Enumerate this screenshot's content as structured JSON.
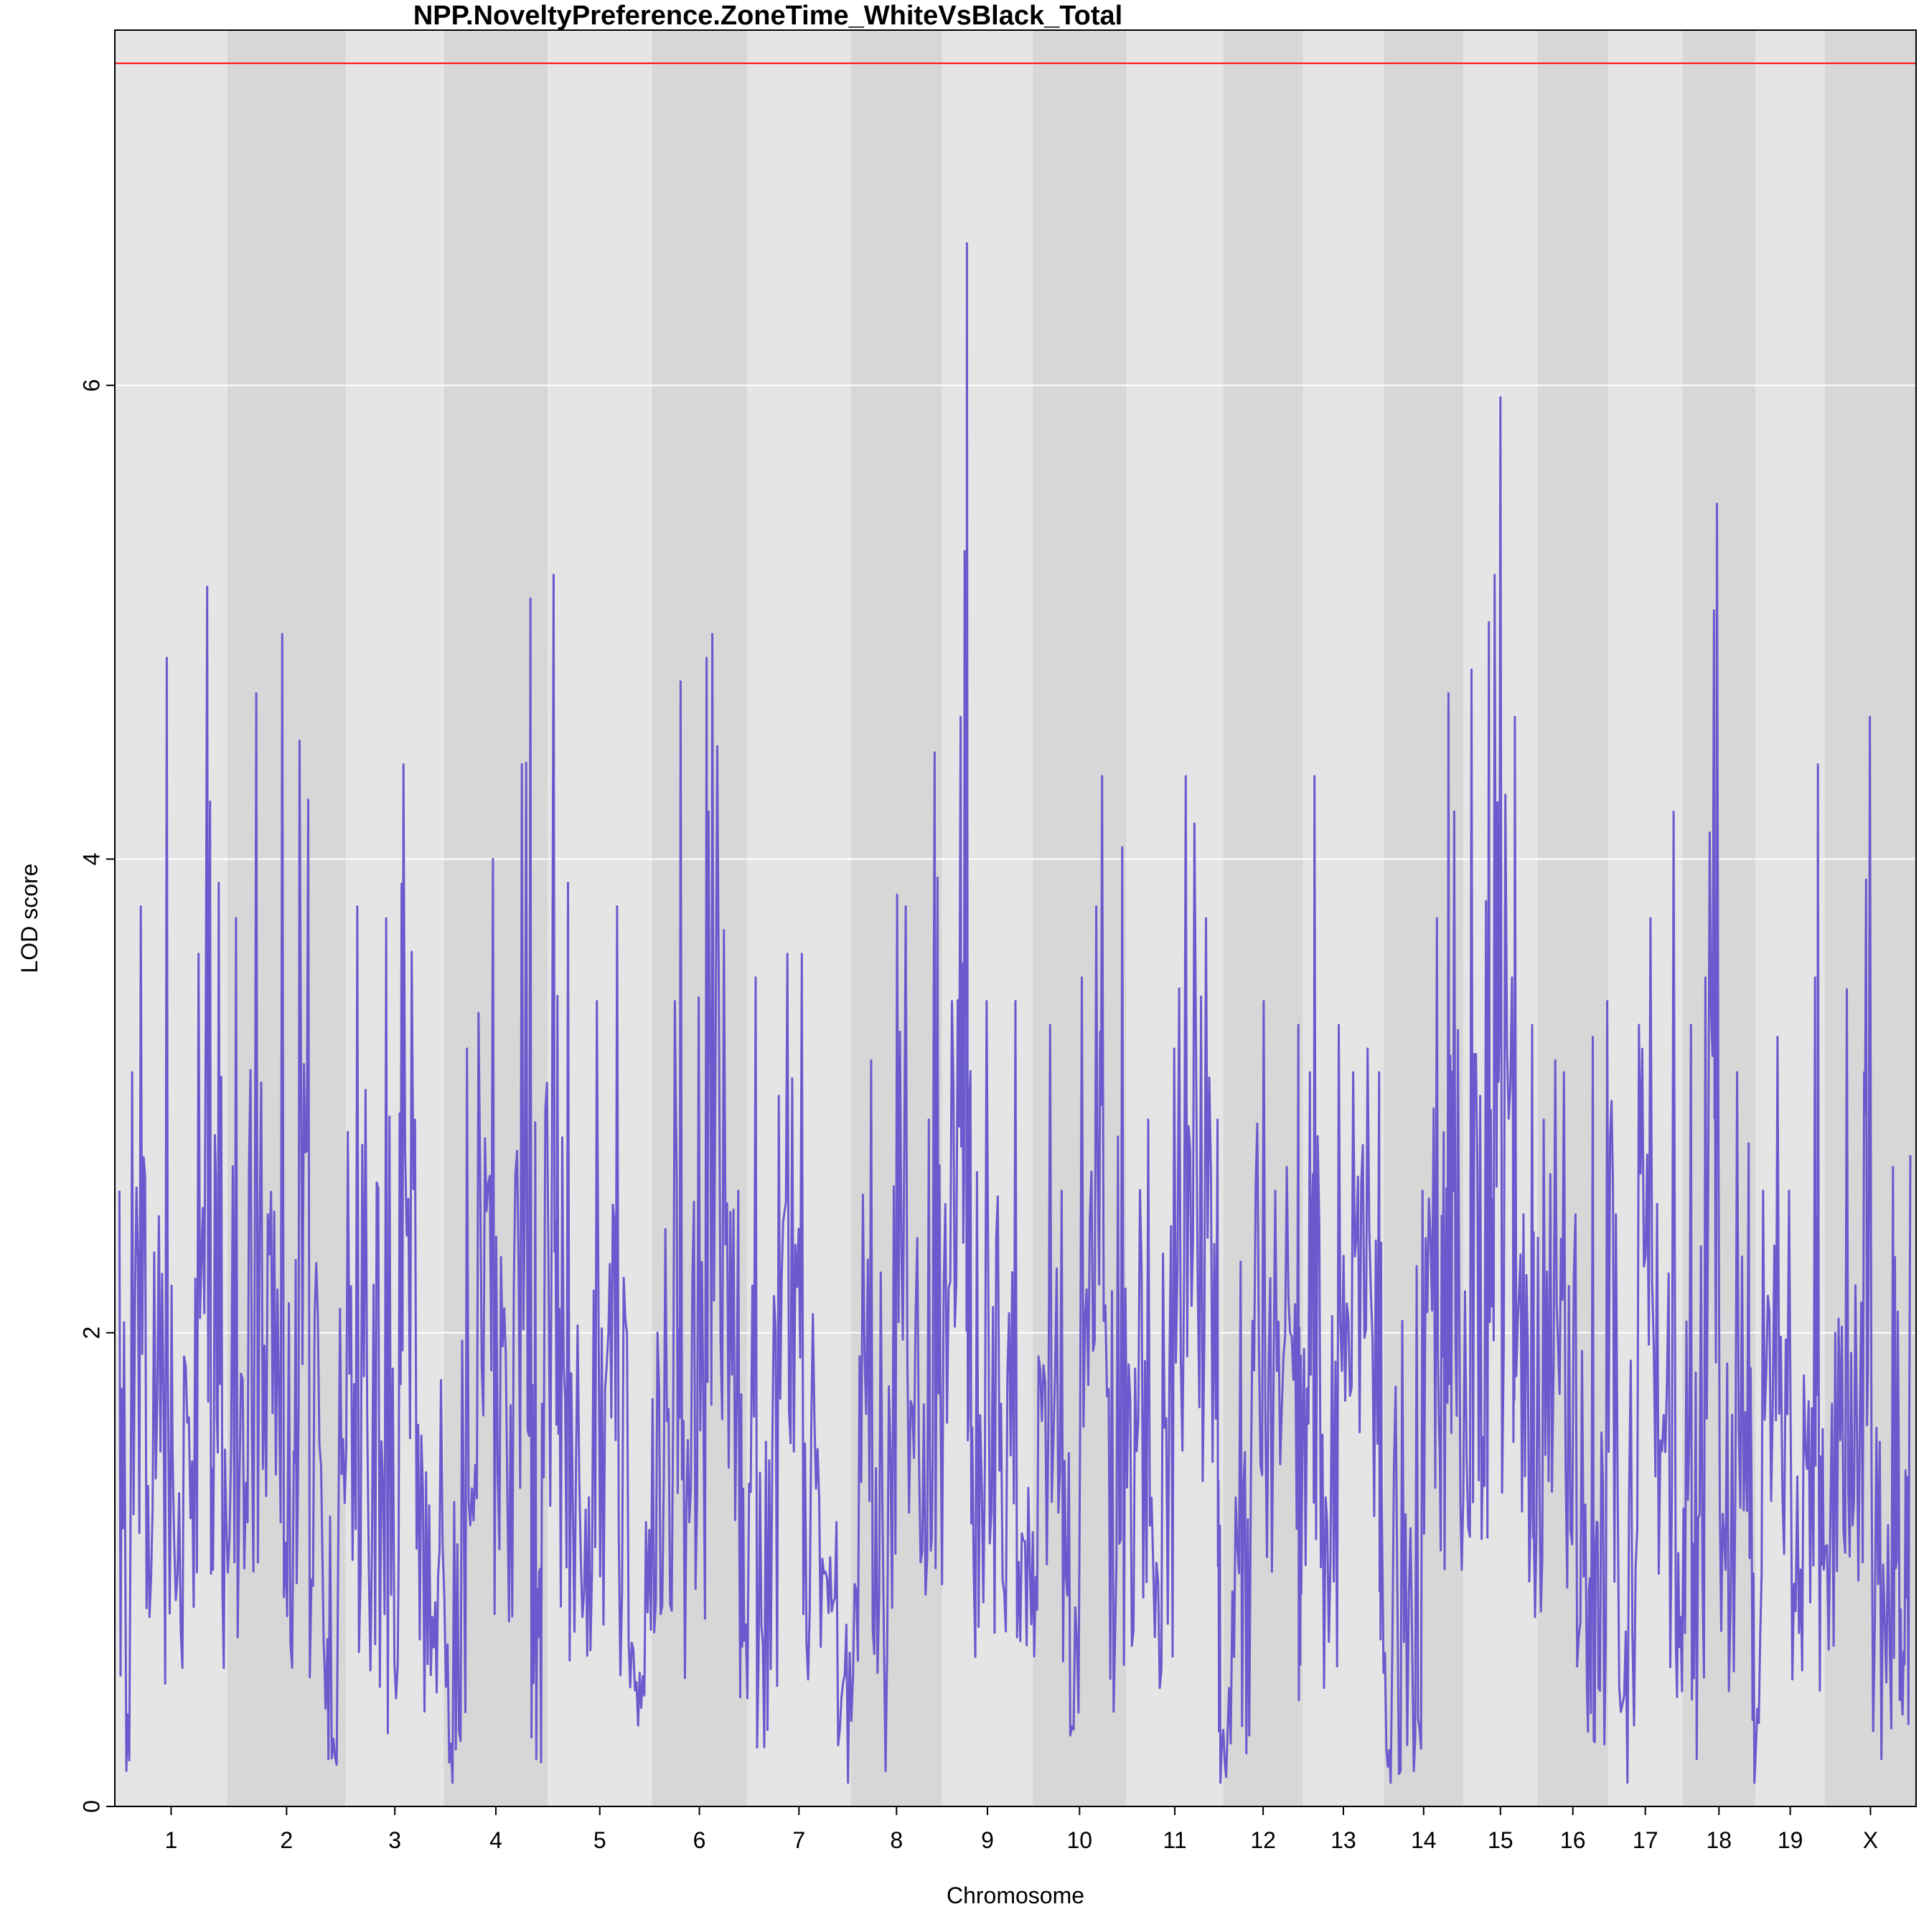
{
  "chart_data": {
    "type": "line",
    "title": "NPP.NoveltyPreference.ZoneTime_WhiteVsBlack_Total",
    "xlabel": "Chromosome",
    "ylabel": "LOD score",
    "ylim": [
      0,
      7.5
    ],
    "yticks": [
      0,
      2,
      4,
      6
    ],
    "grid": true,
    "threshold": 7.36,
    "colors": {
      "series": "#6a5acd",
      "threshold": "#ff0000",
      "band_light": "#e5e5e5",
      "band_dark": "#d7d7d7",
      "grid": "#ffffff"
    },
    "chromosomes": [
      {
        "label": "1",
        "start": 0,
        "end": 1.95
      },
      {
        "label": "2",
        "start": 1.95,
        "end": 4.0
      },
      {
        "label": "3",
        "start": 4.0,
        "end": 5.7
      },
      {
        "label": "4",
        "start": 5.7,
        "end": 7.5
      },
      {
        "label": "5",
        "start": 7.5,
        "end": 9.3
      },
      {
        "label": "6",
        "start": 9.3,
        "end": 10.95
      },
      {
        "label": "7",
        "start": 10.95,
        "end": 12.75
      },
      {
        "label": "8",
        "start": 12.75,
        "end": 14.33
      },
      {
        "label": "9",
        "start": 14.33,
        "end": 15.9
      },
      {
        "label": "10",
        "start": 15.9,
        "end": 17.52
      },
      {
        "label": "11",
        "start": 17.52,
        "end": 19.2
      },
      {
        "label": "12",
        "start": 19.2,
        "end": 20.58
      },
      {
        "label": "13",
        "start": 20.58,
        "end": 21.98
      },
      {
        "label": "14",
        "start": 21.98,
        "end": 23.36
      },
      {
        "label": "15",
        "start": 23.36,
        "end": 24.64
      },
      {
        "label": "16",
        "start": 24.64,
        "end": 25.87
      },
      {
        "label": "17",
        "start": 25.87,
        "end": 27.15
      },
      {
        "label": "18",
        "start": 27.15,
        "end": 28.42
      },
      {
        "label": "19",
        "start": 28.42,
        "end": 29.62
      },
      {
        "label": "X",
        "start": 29.62,
        "end": 31.2
      }
    ],
    "series": [
      {
        "values": [
          [
            0.08,
            2.6
          ],
          [
            0.2,
            0.15
          ],
          [
            0.3,
            3.1
          ],
          [
            0.45,
            3.8
          ],
          [
            0.6,
            0.8
          ],
          [
            0.9,
            4.85
          ],
          [
            1.0,
            1.5
          ],
          [
            1.2,
            1.9
          ],
          [
            1.45,
            3.6
          ],
          [
            1.6,
            5.15
          ],
          [
            1.7,
            1.0
          ],
          [
            1.8,
            3.9
          ],
          [
            1.93,
            1.2
          ],
          [
            2.1,
            3.75
          ],
          [
            2.3,
            1.2
          ],
          [
            2.45,
            4.7
          ],
          [
            2.65,
            2.5
          ],
          [
            2.9,
            4.95
          ],
          [
            3.1,
            1.5
          ],
          [
            3.2,
            4.5
          ],
          [
            3.35,
            4.25
          ],
          [
            3.6,
            1.0
          ],
          [
            3.9,
            2.1
          ],
          [
            3.7,
            0.2
          ],
          [
            4.2,
            3.8
          ],
          [
            4.4,
            1.0
          ],
          [
            4.7,
            3.75
          ],
          [
            4.9,
            0.6
          ],
          [
            5.0,
            4.4
          ],
          [
            5.2,
            2.9
          ],
          [
            5.5,
            0.8
          ],
          [
            5.65,
            1.8
          ],
          [
            5.85,
            0.1
          ],
          [
            6.1,
            3.2
          ],
          [
            6.3,
            3.35
          ],
          [
            6.55,
            4.0
          ],
          [
            6.8,
            1.3
          ],
          [
            7.05,
            4.4
          ],
          [
            7.2,
            5.1
          ],
          [
            7.3,
            0.2
          ],
          [
            7.4,
            1.7
          ],
          [
            7.6,
            5.2
          ],
          [
            7.7,
            2.1
          ],
          [
            7.85,
            3.9
          ],
          [
            8.1,
            0.8
          ],
          [
            8.35,
            3.4
          ],
          [
            8.55,
            2.0
          ],
          [
            8.7,
            3.8
          ],
          [
            8.9,
            0.7
          ],
          [
            9.2,
            1.2
          ],
          [
            9.4,
            2.0
          ],
          [
            9.7,
            3.4
          ],
          [
            9.8,
            4.75
          ],
          [
            9.95,
            1.2
          ],
          [
            10.25,
            4.85
          ],
          [
            10.35,
            4.95
          ],
          [
            10.55,
            3.7
          ],
          [
            10.8,
            2.6
          ],
          [
            10.9,
            0.7
          ],
          [
            11.1,
            3.5
          ],
          [
            11.25,
            0.25
          ],
          [
            11.5,
            3.0
          ],
          [
            11.65,
            3.6
          ],
          [
            11.9,
            3.6
          ],
          [
            12.2,
            1.3
          ],
          [
            12.5,
            1.2
          ],
          [
            12.7,
            0.1
          ],
          [
            12.9,
            1.9
          ],
          [
            13.1,
            3.15
          ],
          [
            13.35,
            0.15
          ],
          [
            13.55,
            3.85
          ],
          [
            13.7,
            3.8
          ],
          [
            13.9,
            2.4
          ],
          [
            14.1,
            2.9
          ],
          [
            14.2,
            4.45
          ],
          [
            14.3,
            1.8
          ],
          [
            14.5,
            3.4
          ],
          [
            14.65,
            4.6
          ],
          [
            14.72,
            5.3
          ],
          [
            14.76,
            6.6
          ],
          [
            14.85,
            1.6
          ],
          [
            15.1,
            3.4
          ],
          [
            15.35,
            1.7
          ],
          [
            15.6,
            3.4
          ],
          [
            15.85,
            1.0
          ],
          [
            16.0,
            1.9
          ],
          [
            16.2,
            3.3
          ],
          [
            16.4,
            2.6
          ],
          [
            16.55,
            0.3
          ],
          [
            16.75,
            3.5
          ],
          [
            17.0,
            3.8
          ],
          [
            17.1,
            4.35
          ],
          [
            17.3,
            0.4
          ],
          [
            17.45,
            4.05
          ],
          [
            17.7,
            1.5
          ],
          [
            17.9,
            2.9
          ],
          [
            18.1,
            0.5
          ],
          [
            18.35,
            3.2
          ],
          [
            18.55,
            4.35
          ],
          [
            18.7,
            4.15
          ],
          [
            18.9,
            3.75
          ],
          [
            19.1,
            2.9
          ],
          [
            19.15,
            0.1
          ],
          [
            19.3,
            0.5
          ],
          [
            19.5,
            2.3
          ],
          [
            19.65,
            0.3
          ],
          [
            19.9,
            3.4
          ],
          [
            20.1,
            2.6
          ],
          [
            20.3,
            2.7
          ],
          [
            20.5,
            3.3
          ],
          [
            20.55,
            0.9
          ],
          [
            20.7,
            3.1
          ],
          [
            20.78,
            4.35
          ],
          [
            21.0,
            1.2
          ],
          [
            21.2,
            3.3
          ],
          [
            21.45,
            3.1
          ],
          [
            21.7,
            3.2
          ],
          [
            21.9,
            3.1
          ],
          [
            21.95,
            1.2
          ],
          [
            22.1,
            0.1
          ],
          [
            22.3,
            2.05
          ],
          [
            22.5,
            0.15
          ],
          [
            22.65,
            2.6
          ],
          [
            22.9,
            3.75
          ],
          [
            23.0,
            1.9
          ],
          [
            23.1,
            4.7
          ],
          [
            23.2,
            4.2
          ],
          [
            23.33,
            1.0
          ],
          [
            23.5,
            4.8
          ],
          [
            23.65,
            3.0
          ],
          [
            23.8,
            5.0
          ],
          [
            23.9,
            5.2
          ],
          [
            24.0,
            5.95
          ],
          [
            24.2,
            3.5
          ],
          [
            24.25,
            4.6
          ],
          [
            24.4,
            2.5
          ],
          [
            24.55,
            3.3
          ],
          [
            24.6,
            0.8
          ],
          [
            24.75,
            2.9
          ],
          [
            24.95,
            3.15
          ],
          [
            25.1,
            3.1
          ],
          [
            25.3,
            2.5
          ],
          [
            25.5,
            0.5
          ],
          [
            25.6,
            3.25
          ],
          [
            25.7,
            0.5
          ],
          [
            25.85,
            3.4
          ],
          [
            26.0,
            2.5
          ],
          [
            26.2,
            0.1
          ],
          [
            26.4,
            3.3
          ],
          [
            26.6,
            3.75
          ],
          [
            26.8,
            1.5
          ],
          [
            27.0,
            4.2
          ],
          [
            27.12,
            0.8
          ],
          [
            27.3,
            3.3
          ],
          [
            27.4,
            0.2
          ],
          [
            27.55,
            3.5
          ],
          [
            27.7,
            5.05
          ],
          [
            27.75,
            5.5
          ],
          [
            27.9,
            1.0
          ],
          [
            28.1,
            3.1
          ],
          [
            28.3,
            2.8
          ],
          [
            28.4,
            0.1
          ],
          [
            28.55,
            2.6
          ],
          [
            28.8,
            3.25
          ],
          [
            29.0,
            2.6
          ],
          [
            29.2,
            1.0
          ],
          [
            29.45,
            3.5
          ],
          [
            29.5,
            4.4
          ],
          [
            29.6,
            1.0
          ],
          [
            29.8,
            2.0
          ],
          [
            30.0,
            3.45
          ],
          [
            30.15,
            2.2
          ],
          [
            30.3,
            3.1
          ],
          [
            30.4,
            4.6
          ],
          [
            30.6,
            0.2
          ],
          [
            30.8,
            2.7
          ],
          [
            30.9,
            1.5
          ],
          [
            31.0,
            0.6
          ],
          [
            31.1,
            2.75
          ]
        ]
      }
    ]
  }
}
